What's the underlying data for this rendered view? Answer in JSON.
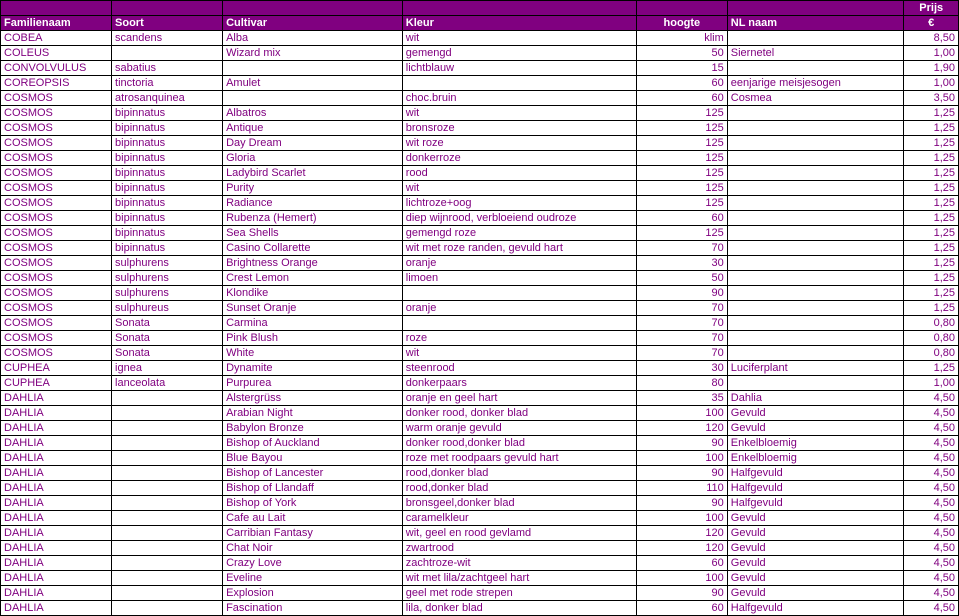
{
  "headers": {
    "familienaam": "Familienaam",
    "soort": "Soort",
    "cultivar": "Cultivar",
    "kleur": "Kleur",
    "hoogte": "hoogte",
    "nlnaam": "NL naam",
    "prijs_top": "Prijs",
    "prijs_bot": "€"
  },
  "rows": [
    [
      "COBEA",
      "scandens",
      "Alba",
      "wit",
      "klim",
      "",
      "8,50"
    ],
    [
      "COLEUS",
      "",
      "Wizard mix",
      "gemengd",
      "50",
      "Siernetel",
      "1,00"
    ],
    [
      "CONVOLVULUS",
      "sabatius",
      "",
      "lichtblauw",
      "15",
      "",
      "1,90"
    ],
    [
      "COREOPSIS",
      "tinctoria",
      "Amulet",
      "",
      "60",
      "eenjarige meisjesogen",
      "1,00"
    ],
    [
      "COSMOS",
      "atrosanquinea",
      "",
      "choc.bruin",
      "60",
      "Cosmea",
      "3,50"
    ],
    [
      "COSMOS",
      "bipinnatus",
      "Albatros",
      "wit",
      "125",
      "",
      "1,25"
    ],
    [
      "COSMOS",
      "bipinnatus",
      "Antique",
      "bronsroze",
      "125",
      "",
      "1,25"
    ],
    [
      "COSMOS",
      "bipinnatus",
      "Day Dream",
      "wit roze",
      "125",
      "",
      "1,25"
    ],
    [
      "COSMOS",
      "bipinnatus",
      "Gloria",
      "donkerroze",
      "125",
      "",
      "1,25"
    ],
    [
      "COSMOS",
      "bipinnatus",
      "Ladybird Scarlet",
      "rood",
      "125",
      "",
      "1,25"
    ],
    [
      "COSMOS",
      "bipinnatus",
      "Purity",
      "wit",
      "125",
      "",
      "1,25"
    ],
    [
      "COSMOS",
      "bipinnatus",
      "Radiance",
      "lichtroze+oog",
      "125",
      "",
      "1,25"
    ],
    [
      "COSMOS",
      "bipinnatus",
      "Rubenza (Hemert)",
      "diep wijnrood, verbloeiend oudroze",
      "60",
      "",
      "1,25"
    ],
    [
      "COSMOS",
      "bipinnatus",
      "Sea Shells",
      "gemengd roze",
      "125",
      "",
      "1,25"
    ],
    [
      "COSMOS",
      "bipinnatus",
      "Casino Collarette",
      "wit met roze randen, gevuld hart",
      "70",
      "",
      "1,25"
    ],
    [
      "COSMOS",
      "sulphurens",
      "Brightness Orange",
      "oranje",
      "30",
      "",
      "1,25"
    ],
    [
      "COSMOS",
      "sulphurens",
      "Crest Lemon",
      "limoen",
      "50",
      "",
      "1,25"
    ],
    [
      "COSMOS",
      "sulphurens",
      "Klondike",
      "",
      "90",
      "",
      "1,25"
    ],
    [
      "COSMOS",
      "sulphureus",
      "Sunset Oranje",
      "oranje",
      "70",
      "",
      "1,25"
    ],
    [
      "COSMOS",
      "Sonata",
      "Carmina",
      "",
      "70",
      "",
      "0,80"
    ],
    [
      "COSMOS",
      "Sonata",
      "Pink Blush",
      "roze",
      "70",
      "",
      "0,80"
    ],
    [
      "COSMOS",
      "Sonata",
      "White",
      "wit",
      "70",
      "",
      "0,80"
    ],
    [
      "CUPHEA",
      "ignea",
      "Dynamite",
      "steenrood",
      "30",
      "Luciferplant",
      "1,25"
    ],
    [
      "CUPHEA",
      "lanceolata",
      "Purpurea",
      "donkerpaars",
      "80",
      "",
      "1,00"
    ],
    [
      "DAHLIA",
      "",
      "Alstergrüss",
      "oranje en geel hart",
      "35",
      "Dahlia",
      "4,50"
    ],
    [
      "DAHLIA",
      "",
      "Arabian Night",
      "donker rood, donker blad",
      "100",
      "Gevuld",
      "4,50"
    ],
    [
      "DAHLIA",
      "",
      "Babylon Bronze",
      "warm oranje gevuld",
      "120",
      "Gevuld",
      "4,50"
    ],
    [
      "DAHLIA",
      "",
      "Bishop of Auckland",
      "donker rood,donker blad",
      "90",
      "Enkelbloemig",
      "4,50"
    ],
    [
      "DAHLIA",
      "",
      "Blue Bayou",
      "roze met roodpaars gevuld hart",
      "100",
      "Enkelbloemig",
      "4,50"
    ],
    [
      "DAHLIA",
      "",
      "Bishop of Lancester",
      "rood,donker blad",
      "90",
      "Halfgevuld",
      "4,50"
    ],
    [
      "DAHLIA",
      "",
      "Bishop of Llandaff",
      "rood,donker blad",
      "110",
      "Halfgevuld",
      "4,50"
    ],
    [
      "DAHLIA",
      "",
      "Bishop of York",
      "bronsgeel,donker blad",
      "90",
      "Halfgevuld",
      "4,50"
    ],
    [
      "DAHLIA",
      "",
      "Cafe au Lait",
      "caramelkleur",
      "100",
      "Gevuld",
      "4,50"
    ],
    [
      "DAHLIA",
      "",
      "Carribian Fantasy",
      "wit, geel en rood gevlamd",
      "120",
      "Gevuld",
      "4,50"
    ],
    [
      "DAHLIA",
      "",
      "Chat Noir",
      "zwartrood",
      "120",
      "Gevuld",
      "4,50"
    ],
    [
      "DAHLIA",
      "",
      "Crazy Love",
      "zachtroze-wit",
      "60",
      "Gevuld",
      "4,50"
    ],
    [
      "DAHLIA",
      "",
      "Eveline",
      "wit met lila/zachtgeel hart",
      "100",
      "Gevuld",
      "4,50"
    ],
    [
      "DAHLIA",
      "",
      "Explosion",
      "geel met rode strepen",
      "90",
      "Gevuld",
      "4,50"
    ],
    [
      "DAHLIA",
      "",
      "Fascination",
      "lila, donker blad",
      "60",
      "Halfgevuld",
      "4,50"
    ]
  ]
}
